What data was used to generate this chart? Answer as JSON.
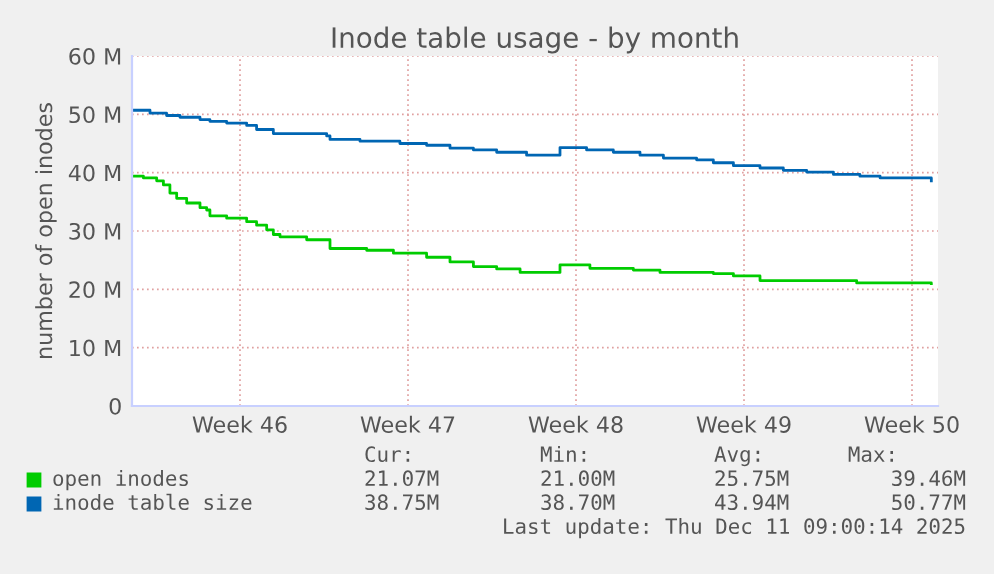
{
  "chart_data": {
    "type": "step",
    "title": "Inode table usage - by month",
    "ylabel": "number of open inodes",
    "xlim": [
      "2025-11-08T00:00",
      "2025-12-11T14:00"
    ],
    "xticks": [
      {
        "value": "2025-11-12T12:00",
        "label": "Week 46"
      },
      {
        "value": "2025-11-19T12:00",
        "label": "Week 47"
      },
      {
        "value": "2025-11-26T12:00",
        "label": "Week 48"
      },
      {
        "value": "2025-12-03T12:00",
        "label": "Week 49"
      },
      {
        "value": "2025-12-10T12:00",
        "label": "Week 50"
      }
    ],
    "ylim": [
      0,
      60
    ],
    "yticks": [
      {
        "value": 0,
        "label": "0"
      },
      {
        "value": 10,
        "label": "10 M"
      },
      {
        "value": 20,
        "label": "20 M"
      },
      {
        "value": 30,
        "label": "30 M"
      },
      {
        "value": 40,
        "label": "40 M"
      },
      {
        "value": 50,
        "label": "50 M"
      },
      {
        "value": 60,
        "label": "60 M"
      }
    ],
    "grid": true,
    "legend": "bottom",
    "series": [
      {
        "name": "open inodes",
        "color": "#00cc00",
        "x": [
          "2025-11-08T01:20",
          "2025-11-08T11:25",
          "2025-11-09T00:40",
          "2025-11-09T07:25",
          "2025-11-09T13:55",
          "2025-11-09T20:40",
          "2025-11-10T06:40",
          "2025-11-10T20:00",
          "2025-11-11T02:40",
          "2025-11-11T05:55",
          "2025-11-11T22:40",
          "2025-11-12T18:40",
          "2025-11-13T04:35",
          "2025-11-13T14:40",
          "2025-11-13T21:20",
          "2025-11-14T04:00",
          "2025-11-15T06:40",
          "2025-11-16T06:00",
          "2025-11-17T18:40",
          "2025-11-18T21:25",
          "2025-11-20T06:35",
          "2025-11-21T06:00",
          "2025-11-22T05:25",
          "2025-11-23T04:40",
          "2025-11-24T04:05",
          "2025-11-25T20:00",
          "2025-11-27T01:55",
          "2025-11-28T21:20",
          "2025-11-30T00:00",
          "2025-12-02T05:20",
          "2025-12-03T01:25",
          "2025-12-04T04:00",
          "2025-12-08T04:40",
          "2025-12-11T07:20"
        ],
        "values": [
          39.4,
          39.1,
          38.6,
          37.9,
          36.5,
          35.6,
          34.8,
          34.0,
          33.6,
          32.6,
          32.2,
          31.6,
          31.0,
          30.2,
          29.4,
          29.0,
          28.5,
          27.0,
          26.7,
          26.2,
          25.5,
          24.7,
          23.9,
          23.5,
          22.9,
          24.2,
          23.6,
          23.3,
          22.9,
          22.7,
          22.3,
          21.5,
          21.1,
          21.0
        ]
      },
      {
        "name": "inode table size",
        "color": "#0066b3",
        "x": [
          "2025-11-08T01:20",
          "2025-11-08T18:00",
          "2025-11-09T10:35",
          "2025-11-10T00:00",
          "2025-11-10T20:00",
          "2025-11-11T05:55",
          "2025-11-11T22:40",
          "2025-11-12T18:40",
          "2025-11-13T04:35",
          "2025-11-13T21:20",
          "2025-11-16T02:40",
          "2025-11-16T06:00",
          "2025-11-17T12:00",
          "2025-11-19T03:55",
          "2025-11-20T06:35",
          "2025-11-21T06:00",
          "2025-11-22T05:25",
          "2025-11-23T04:40",
          "2025-11-24T10:35",
          "2025-11-25T20:00",
          "2025-11-26T22:35",
          "2025-11-28T01:20",
          "2025-11-29T04:00",
          "2025-11-30T03:25",
          "2025-12-01T12:35",
          "2025-12-02T05:20",
          "2025-12-03T01:25",
          "2025-12-04T04:00",
          "2025-12-05T03:20",
          "2025-12-06T02:40",
          "2025-12-07T05:25",
          "2025-12-08T07:55",
          "2025-12-09T04:05",
          "2025-12-11T07:20"
        ],
        "values": [
          50.7,
          50.2,
          49.8,
          49.5,
          49.1,
          48.8,
          48.5,
          48.1,
          47.4,
          46.7,
          46.3,
          45.7,
          45.4,
          45.0,
          44.7,
          44.2,
          43.9,
          43.5,
          43.0,
          44.3,
          43.9,
          43.5,
          43.0,
          42.5,
          42.2,
          41.7,
          41.2,
          40.8,
          40.4,
          40.1,
          39.7,
          39.4,
          39.1,
          38.6
        ]
      }
    ],
    "annotations": [
      "Cur:",
      "Min:",
      "Avg:",
      "Max:",
      "21.07M",
      "21.00M",
      "25.75M",
      "39.46M",
      "38.75M",
      "38.70M",
      "43.94M",
      "50.77M",
      "Last update: Thu Dec 11 09:00:14 2025"
    ]
  }
}
